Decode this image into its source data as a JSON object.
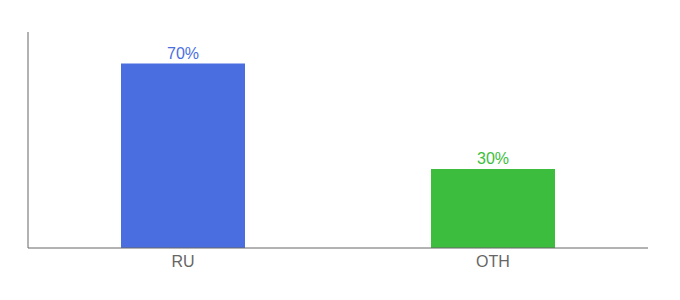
{
  "chart_data": {
    "type": "bar",
    "categories": [
      "RU",
      "OTH"
    ],
    "values": [
      70,
      30
    ],
    "value_labels": [
      "70%",
      "30%"
    ],
    "colors": [
      "#4a6ee0",
      "#3dbd3d"
    ],
    "ylim": [
      0,
      82
    ],
    "data_labels": true,
    "tick_labels": "x",
    "grid": false
  }
}
